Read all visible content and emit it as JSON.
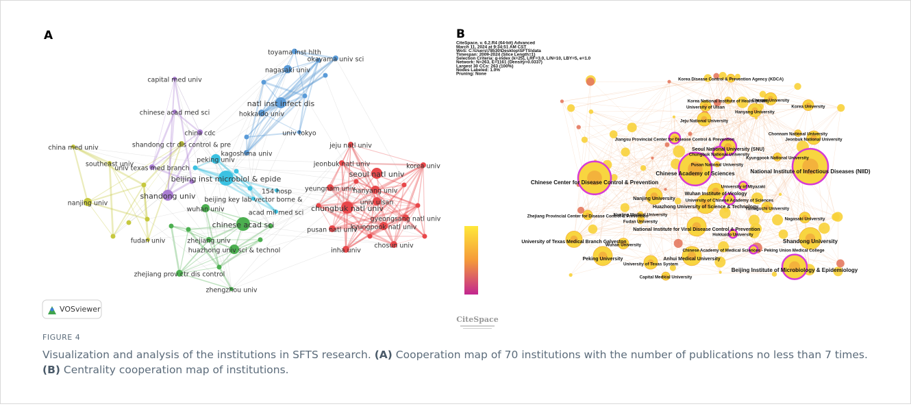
{
  "figure": {
    "panel_a": {
      "label": "A",
      "logo": "VOSviewer",
      "nodes": [
        "toyama inst hlth",
        "okayama univ sci",
        "nagasaki univ",
        "capital med univ",
        "natl inst infect dis",
        "chinese acad med sci",
        "hokkaido univ",
        "china cdc",
        "univ tokyo",
        "shandong ctr dis control & pre",
        "china med univ",
        "kagoshima univ",
        "jeju natl univ",
        "southeast univ",
        "peking univ",
        "univ texas med branch",
        "jeonbuk natl univ",
        "korea univ",
        "beijing inst microbiol & epide",
        "seoul natl univ",
        "154 hosp",
        "shandong univ",
        "beijing key lab vector borne &",
        "yeungnam univ",
        "hanyang univ",
        "nanjing univ",
        "wuhan univ",
        "acad mil med sci",
        "chinese acad sci",
        "univ ulsan",
        "chungbuk natl univ",
        "gyeongsang natl univ",
        "kyungpook natl univ",
        "pusan natl univ",
        "fudan univ",
        "zhejiang univ",
        "chosun univ",
        "huazhong univ sci & technol",
        "inha univ",
        "zhejiang prov ctr dis control",
        "zhengzhou univ"
      ]
    },
    "panel_b": {
      "label": "B",
      "logo": "CiteSpace",
      "header": [
        "CiteSpace, v. 6.2.R4 (64-bit) Advanced",
        "March 11, 2024 at 9:34:51 AM CST",
        "WoS: C:\\Users\\78530\\Desktop\\SFTS\\data",
        "Timespan: 2009-2024 (Slice Length=1)",
        "Selection Criteria: g-index (k=25), LRF=3.0, L/N=10, LBY=5, e=1.0",
        "Network: N=263, E=1161 (Density=0.0337)",
        "Largest 30 CCs: 263 (100%)",
        "Nodes Labeled: 1.0%",
        "Pruning: None"
      ],
      "nodes": [
        "Korea Disease Control & Prevention Agency (KDCA)",
        "Korea National Institute of Health (KNIH)",
        "Chosun University",
        "Korea University",
        "University of Ulsan",
        "Hanyang University",
        "Jeju National University",
        "Chonnam National University",
        "Jeonbuk National University",
        "Jiangsu Provincial Center for Disease Control & Prevention",
        "Seoul National University (SNU)",
        "Chungbuk National University",
        "Kyungpook National University",
        "Pusan National University",
        "National Institute of Infectious Diseases (NIID)",
        "Chinese Academy of Sciences",
        "Chinese Center for Disease Control & Prevention",
        "University of Miyazaki",
        "Wuhan Institute of Virology",
        "Nanjing University",
        "University of Chinese Academy of Sciences",
        "Huazhong University of Science & Technology",
        "Yamaguchi University",
        "Zhejiang Provincial Center for Disease Control & Prevention",
        "Nanjing Medical University",
        "Nagasaki University",
        "Fudan University",
        "National Institute for Viral Disease Control & Prevention",
        "Hokkaido University",
        "University of Texas Medical Branch Galveston",
        "Shandong University",
        "Chinese Academy of Medical Sciences - Peking Union Medical College",
        "Wuhan University",
        "Peking University",
        "Anhui Medical University",
        "University of Texas System",
        "Beijing Institute of Microbiology & Epidemiology",
        "Capital Medical University"
      ]
    }
  },
  "caption": {
    "label": "FIGURE 4",
    "parts": [
      "Visualization and analysis of the institutions in SFTS research. ",
      "(A)",
      " Cooperation map of 70 institutions with the number of publications no less than 7 times. ",
      "(B)",
      " Centrality cooperation map of institutions."
    ]
  }
}
